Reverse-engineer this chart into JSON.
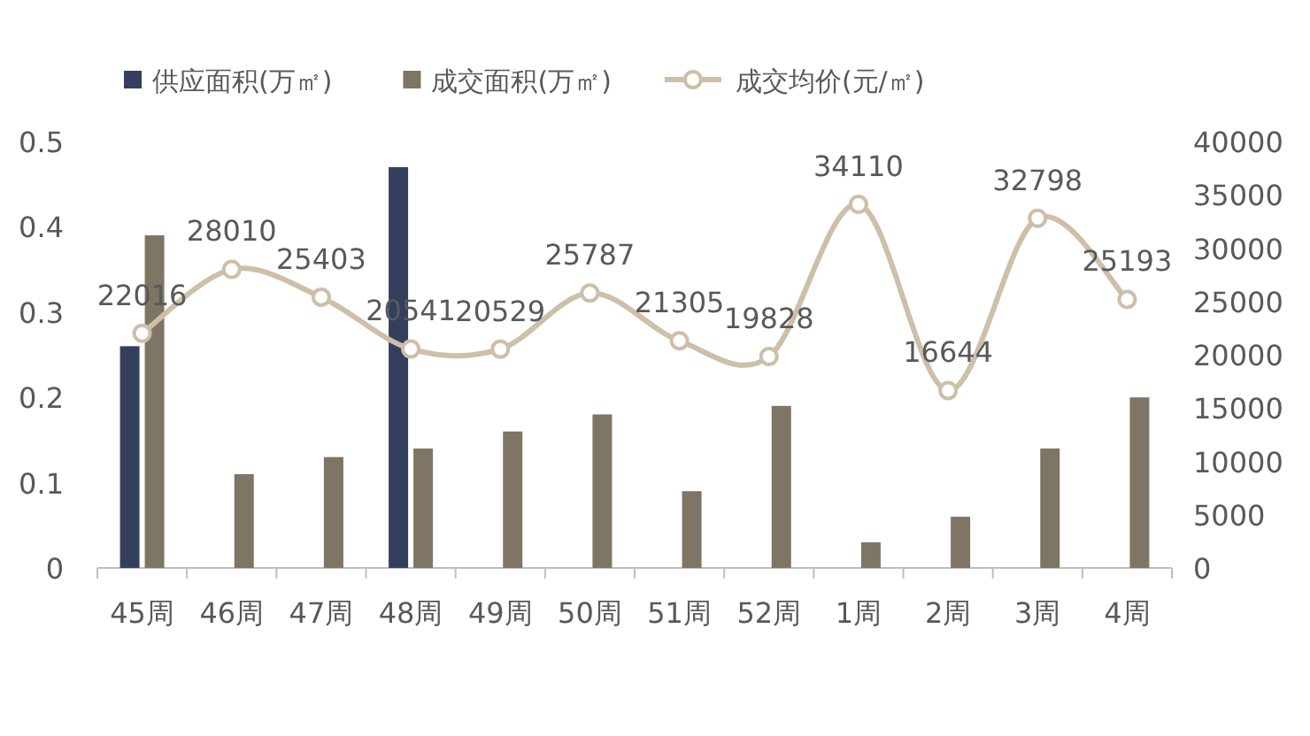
{
  "chart_data": {
    "type": "bar",
    "categories": [
      "45周",
      "46周",
      "47周",
      "48周",
      "49周",
      "50周",
      "51周",
      "52周",
      "1周",
      "2周",
      "3周",
      "4周"
    ],
    "series": [
      {
        "name": "供应面积(万㎡)",
        "color": "#333f5c",
        "values": [
          0.26,
          null,
          null,
          0.47,
          null,
          null,
          null,
          null,
          null,
          null,
          null,
          null
        ]
      },
      {
        "name": "成交面积(万㎡)",
        "color": "#7f7565",
        "values": [
          0.39,
          0.11,
          0.13,
          0.14,
          0.16,
          0.18,
          0.09,
          0.19,
          0.03,
          0.06,
          0.14,
          0.2
        ]
      },
      {
        "name": "成交均价(元/㎡)",
        "color": "#cdbfa8",
        "type": "line",
        "axis": "y2",
        "marker": "circle",
        "values": [
          22016,
          28010,
          25403,
          20541,
          20529,
          25787,
          21305,
          19828,
          34110,
          16644,
          32798,
          25193
        ],
        "value_labels": [
          "22016",
          "28010",
          "25403",
          "20541",
          "20529",
          "25787",
          "21305",
          "19828",
          "34110",
          "16644",
          "32798",
          "25193"
        ]
      }
    ],
    "ylim": [
      0,
      0.5
    ],
    "yticks": [
      0,
      0.1,
      0.2,
      0.3,
      0.4,
      0.5
    ],
    "y2lim": [
      0,
      40000
    ],
    "y2ticks": [
      0,
      5000,
      10000,
      15000,
      20000,
      25000,
      30000,
      35000,
      40000
    ],
    "legend": "top",
    "grid": false
  }
}
